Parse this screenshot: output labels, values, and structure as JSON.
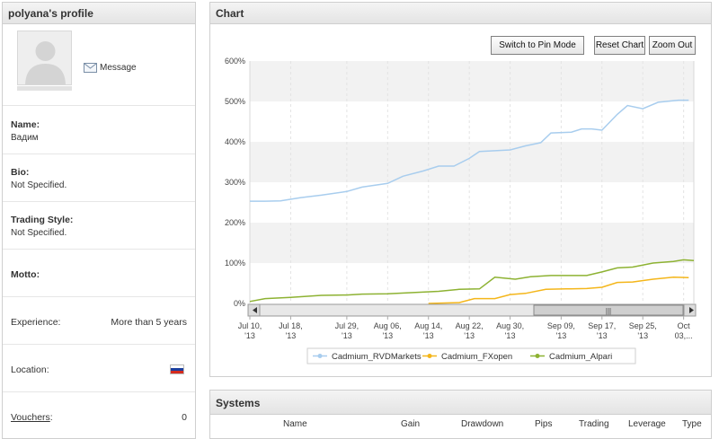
{
  "profile": {
    "title": "polyana's profile",
    "message_label": "Message",
    "name_label": "Name:",
    "name_value": "Вадим",
    "bio_label": "Bio:",
    "bio_value": "Not Specified.",
    "trading_style_label": "Trading Style:",
    "trading_style_value": "Not Specified.",
    "motto_label": "Motto:",
    "experience_label": "Experience:",
    "experience_value": "More than 5 years",
    "location_label": "Location:",
    "location_flag": "russia-flag-icon",
    "vouchers_label": "Vouchers",
    "vouchers_colon": ":",
    "vouchers_value": "0"
  },
  "chart_panel": {
    "title": "Chart",
    "pin_mode_button": "Switch to Pin Mode",
    "reset_button": "Reset Chart",
    "zoom_out_button": "Zoom Out",
    "scrollbar_grip": "|||"
  },
  "systems": {
    "title": "Systems",
    "columns": [
      "Name",
      "Gain",
      "Drawdown",
      "Pips",
      "Trading",
      "Leverage",
      "Type"
    ]
  },
  "colors": {
    "rvd": "#a8cdee",
    "fxopen": "#f4b61a",
    "alpari": "#8db232",
    "band": "#f2f2f2"
  },
  "chart_data": {
    "type": "line",
    "ylim": [
      0,
      600
    ],
    "yticks": [
      "0%",
      "100%",
      "200%",
      "300%",
      "400%",
      "500%",
      "600%"
    ],
    "xlim": [
      "2013-07-10",
      "2013-10-05"
    ],
    "xticks": [
      [
        "Jul 10,",
        "'13"
      ],
      [
        "Jul 18,",
        "'13"
      ],
      [
        "Jul 29,",
        "'13"
      ],
      [
        "Aug 06,",
        "'13"
      ],
      [
        "Aug 14,",
        "'13"
      ],
      [
        "Aug 22,",
        "'13"
      ],
      [
        "Aug 30,",
        "'13"
      ],
      [
        "Sep 09,",
        "'13"
      ],
      [
        "Sep 17,",
        "'13"
      ],
      [
        "Sep 25,",
        "'13"
      ],
      [
        "Oct",
        "03,..."
      ]
    ],
    "tick_dates": [
      "2013-07-10",
      "2013-07-18",
      "2013-07-29",
      "2013-08-06",
      "2013-08-14",
      "2013-08-22",
      "2013-08-30",
      "2013-09-09",
      "2013-09-17",
      "2013-09-25",
      "2013-10-03"
    ],
    "legend_position": "bottom-center",
    "series": [
      {
        "name": "Cadmium_RVDMarkets",
        "color_key": "rvd",
        "points": [
          [
            "2013-07-10",
            253
          ],
          [
            "2013-07-13",
            253
          ],
          [
            "2013-07-16",
            254
          ],
          [
            "2013-07-20",
            262
          ],
          [
            "2013-07-24",
            268
          ],
          [
            "2013-07-29",
            277
          ],
          [
            "2013-08-01",
            288
          ],
          [
            "2013-08-06",
            297
          ],
          [
            "2013-08-09",
            315
          ],
          [
            "2013-08-13",
            328
          ],
          [
            "2013-08-16",
            340
          ],
          [
            "2013-08-19",
            340
          ],
          [
            "2013-08-22",
            359
          ],
          [
            "2013-08-24",
            376
          ],
          [
            "2013-08-27",
            378
          ],
          [
            "2013-08-30",
            380
          ],
          [
            "2013-09-02",
            390
          ],
          [
            "2013-09-05",
            398
          ],
          [
            "2013-09-07",
            422
          ],
          [
            "2013-09-11",
            424
          ],
          [
            "2013-09-13",
            432
          ],
          [
            "2013-09-15",
            432
          ],
          [
            "2013-09-17",
            429
          ],
          [
            "2013-09-20",
            468
          ],
          [
            "2013-09-22",
            490
          ],
          [
            "2013-09-25",
            482
          ],
          [
            "2013-09-28",
            498
          ],
          [
            "2013-10-02",
            503
          ],
          [
            "2013-10-04",
            503
          ]
        ]
      },
      {
        "name": "Cadmium_FXopen",
        "color_key": "fxopen",
        "points": [
          [
            "2013-08-14",
            0
          ],
          [
            "2013-08-20",
            2
          ],
          [
            "2013-08-23",
            12
          ],
          [
            "2013-08-27",
            12
          ],
          [
            "2013-08-30",
            22
          ],
          [
            "2013-09-02",
            25
          ],
          [
            "2013-09-06",
            35
          ],
          [
            "2013-09-10",
            36
          ],
          [
            "2013-09-14",
            37
          ],
          [
            "2013-09-17",
            40
          ],
          [
            "2013-09-20",
            52
          ],
          [
            "2013-09-23",
            53
          ],
          [
            "2013-09-27",
            60
          ],
          [
            "2013-10-01",
            65
          ],
          [
            "2013-10-04",
            64
          ]
        ]
      },
      {
        "name": "Cadmium_Alpari",
        "color_key": "alpari",
        "points": [
          [
            "2013-07-10",
            5
          ],
          [
            "2013-07-13",
            12
          ],
          [
            "2013-07-18",
            15
          ],
          [
            "2013-07-24",
            20
          ],
          [
            "2013-07-29",
            21
          ],
          [
            "2013-08-01",
            23
          ],
          [
            "2013-08-06",
            24
          ],
          [
            "2013-08-11",
            27
          ],
          [
            "2013-08-16",
            30
          ],
          [
            "2013-08-20",
            35
          ],
          [
            "2013-08-24",
            36
          ],
          [
            "2013-08-27",
            65
          ],
          [
            "2013-08-31",
            60
          ],
          [
            "2013-09-03",
            66
          ],
          [
            "2013-09-07",
            69
          ],
          [
            "2013-09-14",
            69
          ],
          [
            "2013-09-17",
            78
          ],
          [
            "2013-09-20",
            88
          ],
          [
            "2013-09-23",
            90
          ],
          [
            "2013-09-27",
            100
          ],
          [
            "2013-10-01",
            104
          ],
          [
            "2013-10-03",
            108
          ],
          [
            "2013-10-05",
            106
          ]
        ]
      }
    ]
  }
}
